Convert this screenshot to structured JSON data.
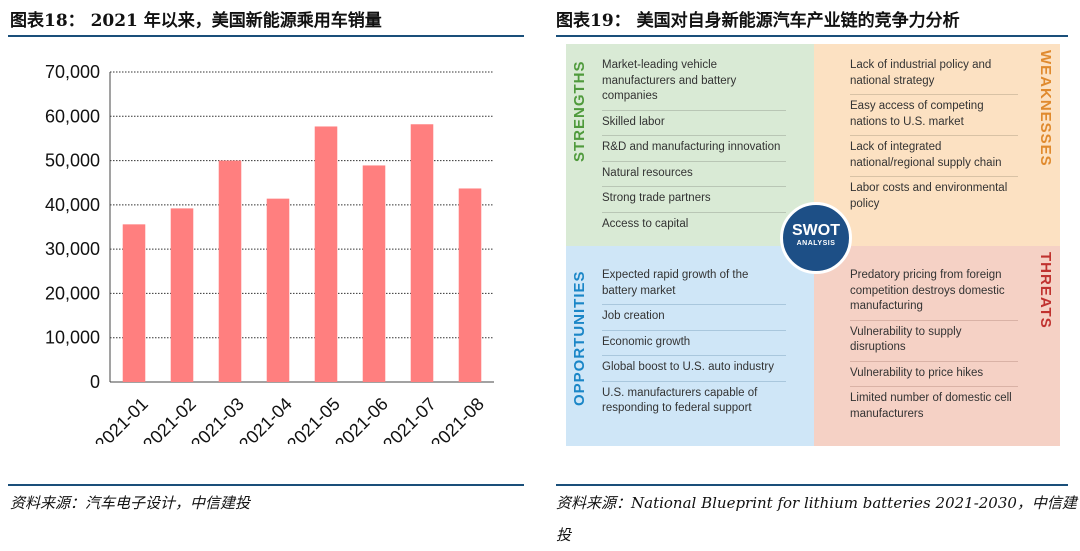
{
  "left_figure": {
    "title": "图表18： 2021 年以来，美国新能源乘用车销量",
    "source": "资料来源：汽车电子设计，中信建投"
  },
  "right_figure": {
    "title": "图表19： 美国对自身新能源汽车产业链的竞争力分析",
    "source_line1": "资料来源：National Blueprint for lithium batteries 2021-2030，中信建",
    "source_line2": "投"
  },
  "chart_data": {
    "type": "bar",
    "categories": [
      "2021-01",
      "2021-02",
      "2021-03",
      "2021-04",
      "2021-05",
      "2021-06",
      "2021-07",
      "2021-08"
    ],
    "values": [
      35600,
      39200,
      50000,
      41400,
      57700,
      48900,
      58200,
      43700
    ],
    "ylim": [
      0,
      70000
    ],
    "yticks": [
      0,
      10000,
      20000,
      30000,
      40000,
      50000,
      60000,
      70000
    ],
    "ytick_labels": [
      "0",
      "10,000",
      "20,000",
      "30,000",
      "40,000",
      "50,000",
      "60,000",
      "70,000"
    ],
    "grid": true,
    "bar_color": "#ff7f7f"
  },
  "swot": {
    "center_title": "SWOT",
    "center_subtitle": "ANALYSIS",
    "strengths": {
      "label": "STRENGTHS",
      "color": "#4f9a3c",
      "items": [
        "Market-leading vehicle manufacturers and battery companies",
        "Skilled labor",
        "R&D and manufacturing innovation",
        "Natural resources",
        "Strong trade partners",
        "Access to capital"
      ]
    },
    "weaknesses": {
      "label": "WEAKNESSES",
      "color": "#e08a2e",
      "items": [
        "Lack of industrial policy and national strategy",
        "Easy access of competing nations to U.S. market",
        "Lack of integrated national/regional supply chain",
        "Labor costs and environmental policy"
      ]
    },
    "opportunities": {
      "label": "OPPORTUNITIES",
      "color": "#1a86c7",
      "items": [
        "Expected rapid growth of the battery market",
        "Job creation",
        "Economic growth",
        "Global boost to U.S. auto industry",
        "U.S. manufacturers capable of responding to federal support"
      ]
    },
    "threats": {
      "label": "THREATS",
      "color": "#c0322f",
      "items": [
        "Predatory pricing from foreign competition destroys domestic manufacturing",
        "Vulnerability to supply disruptions",
        "Vulnerability to price hikes",
        "Limited number of domestic cell manufacturers"
      ]
    }
  }
}
